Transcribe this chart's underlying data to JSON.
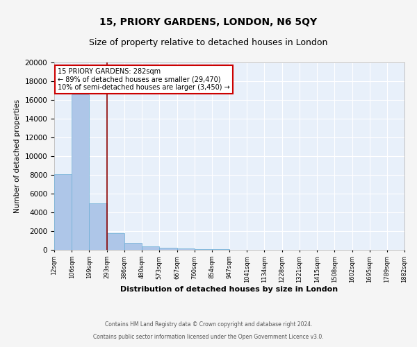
{
  "title": "15, PRIORY GARDENS, LONDON, N6 5QY",
  "subtitle": "Size of property relative to detached houses in London",
  "xlabel": "Distribution of detached houses by size in London",
  "ylabel": "Number of detached properties",
  "bar_edges": [
    12,
    106,
    199,
    293,
    386,
    480,
    573,
    667,
    760,
    854,
    947,
    1041,
    1134,
    1228,
    1321,
    1415,
    1508,
    1602,
    1695,
    1789,
    1882
  ],
  "bar_heights": [
    8050,
    16600,
    5000,
    1750,
    750,
    390,
    210,
    155,
    105,
    55,
    0,
    0,
    0,
    0,
    0,
    0,
    0,
    0,
    0,
    0
  ],
  "bar_color": "#aec6e8",
  "bar_edge_color": "#6baed6",
  "property_line_x": 293,
  "property_line_color": "#8b0000",
  "annotation_title": "15 PRIORY GARDENS: 282sqm",
  "annotation_line1": "← 89% of detached houses are smaller (29,470)",
  "annotation_line2": "10% of semi-detached houses are larger (3,450) →",
  "annotation_box_color": "#ffffff",
  "annotation_border_color": "#cc0000",
  "ylim": [
    0,
    20000
  ],
  "yticks": [
    0,
    2000,
    4000,
    6000,
    8000,
    10000,
    12000,
    14000,
    16000,
    18000,
    20000
  ],
  "footnote1": "Contains HM Land Registry data © Crown copyright and database right 2024.",
  "footnote2": "Contains public sector information licensed under the Open Government Licence v3.0.",
  "bg_color": "#e8f0fa",
  "grid_color": "#ffffff",
  "title_fontsize": 10,
  "subtitle_fontsize": 9,
  "tick_labels": [
    "12sqm",
    "106sqm",
    "199sqm",
    "293sqm",
    "386sqm",
    "480sqm",
    "573sqm",
    "667sqm",
    "760sqm",
    "854sqm",
    "947sqm",
    "1041sqm",
    "1134sqm",
    "1228sqm",
    "1321sqm",
    "1415sqm",
    "1508sqm",
    "1602sqm",
    "1695sqm",
    "1789sqm",
    "1882sqm"
  ]
}
